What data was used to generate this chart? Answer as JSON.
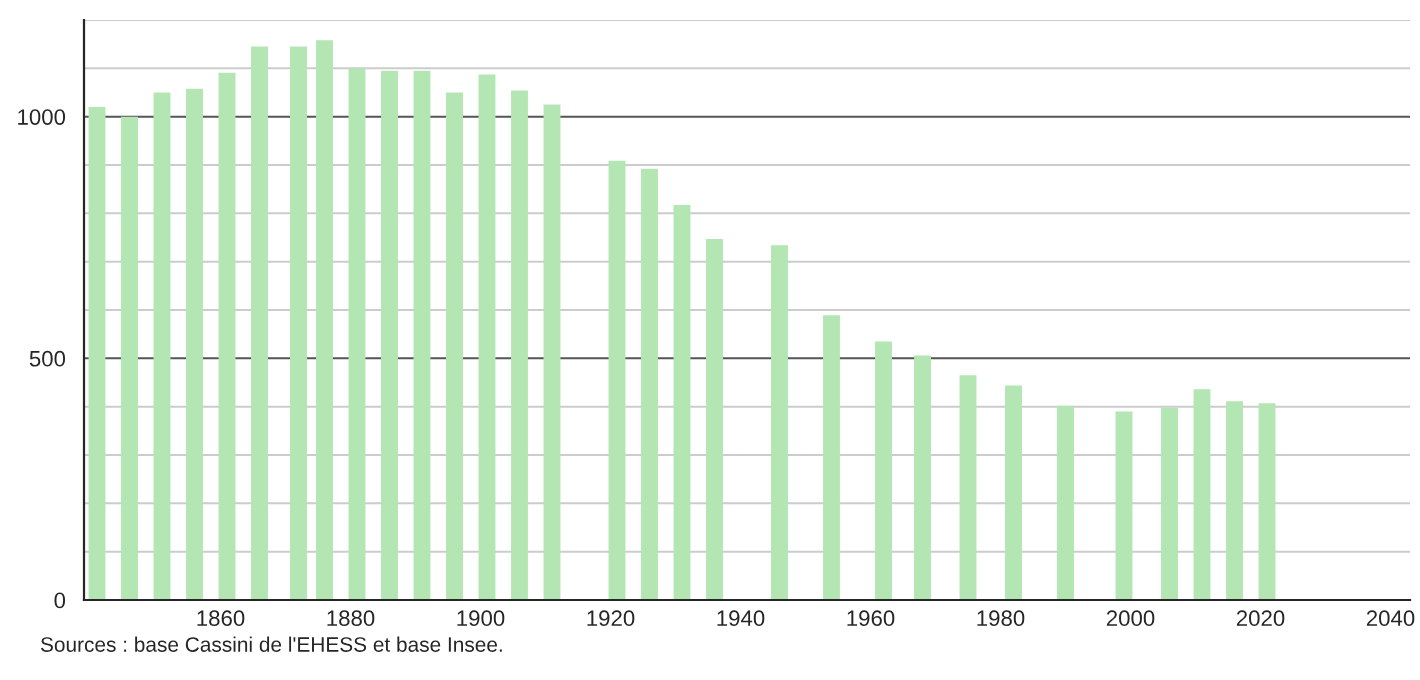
{
  "chart_data": {
    "type": "bar",
    "color": "#b3e6b3",
    "x": [
      1841,
      1846,
      1851,
      1856,
      1861,
      1866,
      1872,
      1876,
      1881,
      1886,
      1891,
      1896,
      1901,
      1906,
      1911,
      1921,
      1926,
      1931,
      1936,
      1946,
      1954,
      1962,
      1968,
      1975,
      1982,
      1990,
      1999,
      2006,
      2011,
      2016,
      2021
    ],
    "values": [
      1020,
      1000,
      1050,
      1058,
      1091,
      1145,
      1145,
      1158,
      1100,
      1095,
      1095,
      1050,
      1087,
      1054,
      1025,
      909,
      892,
      817,
      747,
      734,
      589,
      535,
      506,
      465,
      444,
      402,
      390,
      398,
      436,
      411,
      407
    ],
    "xlim": [
      1839,
      2043
    ],
    "xticks": [
      1860,
      1880,
      1900,
      1920,
      1940,
      1960,
      1980,
      2000,
      2020,
      2040
    ],
    "ylim": [
      0,
      1200
    ],
    "yticks": [
      0,
      {
        "value": 100,
        "label": null
      },
      {
        "value": 200,
        "label": null
      },
      {
        "value": 300,
        "label": null
      },
      {
        "value": 400,
        "label": null
      },
      500,
      {
        "value": 600,
        "label": null
      },
      {
        "value": 700,
        "label": null
      },
      {
        "value": 800,
        "label": null
      },
      {
        "value": 900,
        "label": null
      },
      1000,
      {
        "value": 1100,
        "label": null
      },
      {
        "value": 1200,
        "label": null
      }
    ],
    "grid": "y",
    "annotations": [
      "Sources : base Cassini de l'EHESS et base Insee."
    ]
  }
}
